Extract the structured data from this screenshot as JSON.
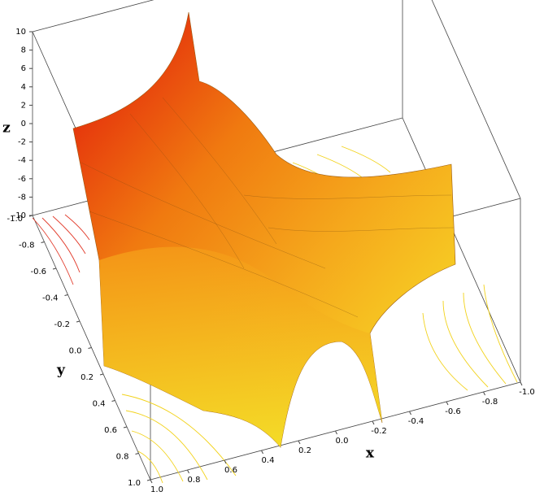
{
  "chart_data": {
    "type": "surface3d",
    "xlabel": "x",
    "ylabel": "y",
    "zlabel": "z",
    "xlim": [
      -1,
      1
    ],
    "ylim": [
      -1,
      1
    ],
    "zlim": [
      -10,
      10
    ],
    "xticks": [
      {
        "value": -1,
        "label": "-1.0"
      },
      -0.8,
      -0.6,
      -0.4,
      -0.2,
      {
        "value": 0,
        "label": "0.0"
      },
      0.2,
      0.4,
      0.6,
      0.8,
      {
        "value": 1,
        "label": "1.0"
      }
    ],
    "yticks": [
      {
        "value": -1,
        "label": "-1.0"
      },
      -0.8,
      -0.6,
      -0.4,
      -0.2,
      {
        "value": 0,
        "label": "0.0"
      },
      0.2,
      0.4,
      0.6,
      0.8,
      {
        "value": 1,
        "label": "1.0"
      }
    ],
    "zticks": [
      -10,
      -8,
      -6,
      -4,
      -2,
      0,
      2,
      4,
      6,
      8,
      10
    ]
  }
}
